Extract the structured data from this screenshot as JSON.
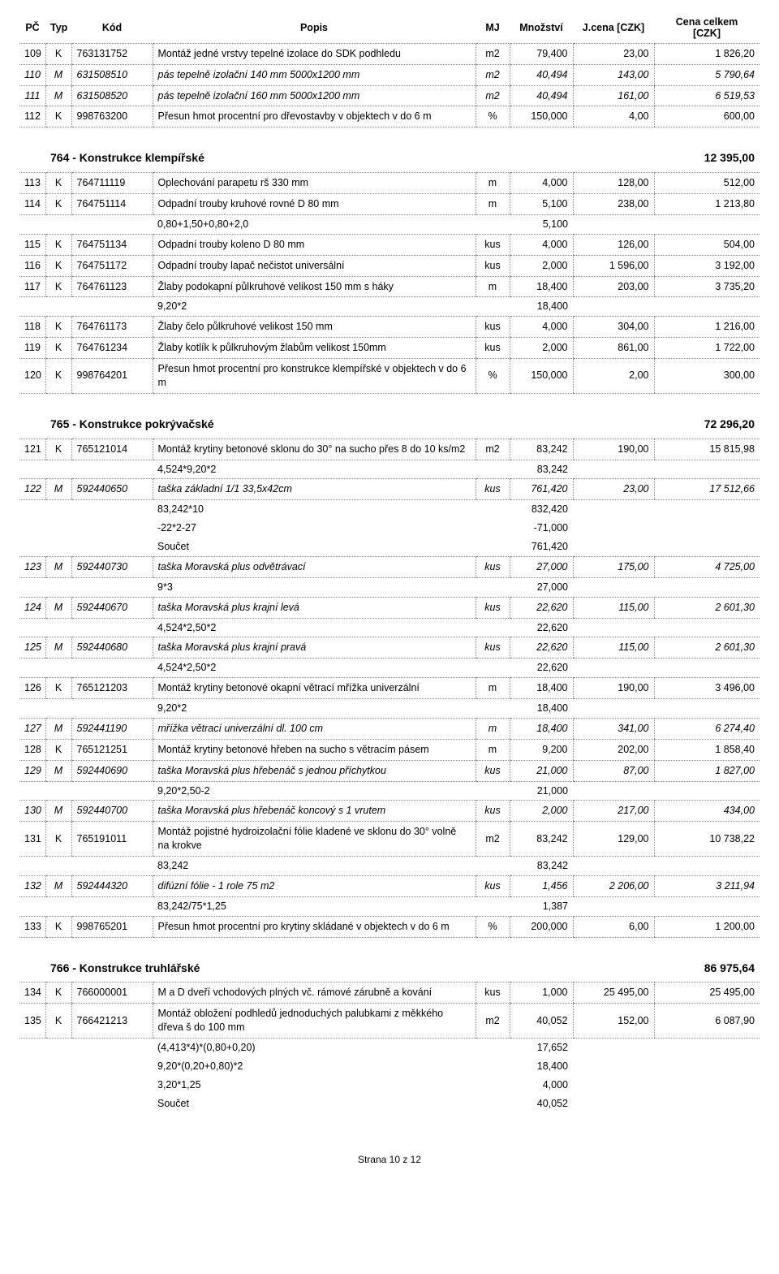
{
  "headers": {
    "pc": "PČ",
    "typ": "Typ",
    "kod": "Kód",
    "popis": "Popis",
    "mj": "MJ",
    "mnoz": "Množství",
    "jcena": "J.cena [CZK]",
    "cena": "Cena celkem\n[CZK]"
  },
  "footer": "Strana 10 z 12",
  "intro": [
    {
      "pc": "109",
      "typ": "K",
      "kod": "763131752",
      "popis": "Montáž jedné vrstvy tepelné izolace do SDK podhledu",
      "mj": "m2",
      "mnoz": "79,400",
      "jcena": "23,00",
      "cena": "1 826,20"
    },
    {
      "pc": "110",
      "typ": "M",
      "kod": "631508510",
      "popis": "pás tepelně izolační   140 mm 5000x1200 mm",
      "mj": "m2",
      "mnoz": "40,494",
      "jcena": "143,00",
      "cena": "5 790,64",
      "italic": true
    },
    {
      "pc": "111",
      "typ": "M",
      "kod": "631508520",
      "popis": "pás tepelně izolační 160 mm 5000x1200 mm",
      "mj": "m2",
      "mnoz": "40,494",
      "jcena": "161,00",
      "cena": "6 519,53",
      "italic": true
    },
    {
      "pc": "112",
      "typ": "K",
      "kod": "998763200",
      "popis": "Přesun hmot procentní pro dřevostavby v objektech v do 6 m",
      "mj": "%",
      "mnoz": "150,000",
      "jcena": "4,00",
      "cena": "600,00"
    }
  ],
  "sections": [
    {
      "title": "764 - Konstrukce klempířské",
      "total": "12 395,00",
      "rows": [
        {
          "t": "r",
          "pc": "113",
          "typ": "K",
          "kod": "764711119",
          "popis": "Oplechování parapetu  rš 330 mm",
          "mj": "m",
          "mnoz": "4,000",
          "jcena": "128,00",
          "cena": "512,00"
        },
        {
          "t": "r",
          "pc": "114",
          "typ": "K",
          "kod": "764751114",
          "popis": "Odpadní trouby kruhové rovné D 80 mm",
          "mj": "m",
          "mnoz": "5,100",
          "jcena": "238,00",
          "cena": "1 213,80"
        },
        {
          "t": "c",
          "expr": "0,80+1,50+0,80+2,0",
          "val": "5,100"
        },
        {
          "t": "r",
          "pc": "115",
          "typ": "K",
          "kod": "764751134",
          "popis": "Odpadní trouby  koleno  D 80 mm",
          "mj": "kus",
          "mnoz": "4,000",
          "jcena": "126,00",
          "cena": "504,00"
        },
        {
          "t": "r",
          "pc": "116",
          "typ": "K",
          "kod": "764751172",
          "popis": "Odpadní trouby  lapač nečistot  universální",
          "mj": "kus",
          "mnoz": "2,000",
          "jcena": "1 596,00",
          "cena": "3 192,00"
        },
        {
          "t": "r",
          "pc": "117",
          "typ": "K",
          "kod": "764761123",
          "popis": "Žlaby podokapní půlkruhové  velikost 150 mm s háky",
          "mj": "m",
          "mnoz": "18,400",
          "jcena": "203,00",
          "cena": "3 735,20"
        },
        {
          "t": "c",
          "expr": "9,20*2",
          "val": "18,400"
        },
        {
          "t": "r",
          "pc": "118",
          "typ": "K",
          "kod": "764761173",
          "popis": "Žlaby   čelo půlkruhové  velikost 150 mm",
          "mj": "kus",
          "mnoz": "4,000",
          "jcena": "304,00",
          "cena": "1 216,00"
        },
        {
          "t": "r",
          "pc": "119",
          "typ": "K",
          "kod": "764761234",
          "popis": "Žlaby   kotlík  k půlkruhovým žlabům velikost 150mm",
          "mj": "kus",
          "mnoz": "2,000",
          "jcena": "861,00",
          "cena": "1 722,00"
        },
        {
          "t": "r",
          "pc": "120",
          "typ": "K",
          "kod": "998764201",
          "popis": "Přesun hmot procentní pro konstrukce klempířské v objektech v do 6 m",
          "mj": "%",
          "mnoz": "150,000",
          "jcena": "2,00",
          "cena": "300,00"
        }
      ]
    },
    {
      "title": "765 - Konstrukce pokrývačské",
      "total": "72 296,20",
      "rows": [
        {
          "t": "r",
          "pc": "121",
          "typ": "K",
          "kod": "765121014",
          "popis": "Montáž krytiny betonové sklonu do 30° na sucho přes 8 do 10 ks/m2",
          "mj": "m2",
          "mnoz": "83,242",
          "jcena": "190,00",
          "cena": "15 815,98"
        },
        {
          "t": "c",
          "expr": "4,524*9,20*2",
          "val": "83,242"
        },
        {
          "t": "r",
          "pc": "122",
          "typ": "M",
          "kod": "592440650",
          "popis": "taška  základní 1/1 33,5x42cm",
          "mj": "kus",
          "mnoz": "761,420",
          "jcena": "23,00",
          "cena": "17 512,66",
          "italic": true
        },
        {
          "t": "c",
          "expr": "83,242*10",
          "val": "832,420"
        },
        {
          "t": "c",
          "expr": "-22*2-27",
          "val": "-71,000"
        },
        {
          "t": "c",
          "expr": "Součet",
          "val": "761,420"
        },
        {
          "t": "r",
          "pc": "123",
          "typ": "M",
          "kod": "592440730",
          "popis": "taška Moravská plus odvětrávací",
          "mj": "kus",
          "mnoz": "27,000",
          "jcena": "175,00",
          "cena": "4 725,00",
          "italic": true
        },
        {
          "t": "c",
          "expr": "9*3",
          "val": "27,000"
        },
        {
          "t": "r",
          "pc": "124",
          "typ": "M",
          "kod": "592440670",
          "popis": "taška Moravská plus krajní levá",
          "mj": "kus",
          "mnoz": "22,620",
          "jcena": "115,00",
          "cena": "2 601,30",
          "italic": true
        },
        {
          "t": "c",
          "expr": "4,524*2,50*2",
          "val": "22,620"
        },
        {
          "t": "r",
          "pc": "125",
          "typ": "M",
          "kod": "592440680",
          "popis": "taška Moravská plus krajní pravá",
          "mj": "kus",
          "mnoz": "22,620",
          "jcena": "115,00",
          "cena": "2 601,30",
          "italic": true
        },
        {
          "t": "c",
          "expr": "4,524*2,50*2",
          "val": "22,620"
        },
        {
          "t": "r",
          "pc": "126",
          "typ": "K",
          "kod": "765121203",
          "popis": "Montáž krytiny betonové okapní větrací mřížka univerzální",
          "mj": "m",
          "mnoz": "18,400",
          "jcena": "190,00",
          "cena": "3 496,00"
        },
        {
          "t": "c",
          "expr": "9,20*2",
          "val": "18,400"
        },
        {
          "t": "r",
          "pc": "127",
          "typ": "M",
          "kod": "592441190",
          "popis": "mřížka větrací univerzální dl. 100 cm",
          "mj": "m",
          "mnoz": "18,400",
          "jcena": "341,00",
          "cena": "6 274,40",
          "italic": true
        },
        {
          "t": "r",
          "pc": "128",
          "typ": "K",
          "kod": "765121251",
          "popis": "Montáž krytiny betonové hřeben na sucho s větracím pásem",
          "mj": "m",
          "mnoz": "9,200",
          "jcena": "202,00",
          "cena": "1 858,40"
        },
        {
          "t": "r",
          "pc": "129",
          "typ": "M",
          "kod": "592440690",
          "popis": "taška Moravská plus hřebenáč s jednou příchytkou",
          "mj": "kus",
          "mnoz": "21,000",
          "jcena": "87,00",
          "cena": "1 827,00",
          "italic": true
        },
        {
          "t": "c",
          "expr": "9,20*2,50-2",
          "val": "21,000"
        },
        {
          "t": "r",
          "pc": "130",
          "typ": "M",
          "kod": "592440700",
          "popis": "taška Moravská plus hřebenáč koncový s 1 vrutem",
          "mj": "kus",
          "mnoz": "2,000",
          "jcena": "217,00",
          "cena": "434,00",
          "italic": true
        },
        {
          "t": "r",
          "pc": "131",
          "typ": "K",
          "kod": "765191011",
          "popis": "Montáž pojistné hydroizolační fólie kladené ve sklonu do 30° volně na krokve",
          "mj": "m2",
          "mnoz": "83,242",
          "jcena": "129,00",
          "cena": "10 738,22"
        },
        {
          "t": "c",
          "expr": "83,242",
          "val": "83,242"
        },
        {
          "t": "r",
          "pc": "132",
          "typ": "M",
          "kod": "592444320",
          "popis": "difúzní fólie  - 1 role 75 m2",
          "mj": "kus",
          "mnoz": "1,456",
          "jcena": "2 206,00",
          "cena": "3 211,94",
          "italic": true
        },
        {
          "t": "c",
          "expr": "83,242/75*1,25",
          "val": "1,387"
        },
        {
          "t": "r",
          "pc": "133",
          "typ": "K",
          "kod": "998765201",
          "popis": "Přesun hmot procentní pro krytiny skládané v objektech v do 6 m",
          "mj": "%",
          "mnoz": "200,000",
          "jcena": "6,00",
          "cena": "1 200,00"
        }
      ]
    },
    {
      "title": "766 - Konstrukce truhlářské",
      "total": "86 975,64",
      "rows": [
        {
          "t": "r",
          "pc": "134",
          "typ": "K",
          "kod": "766000001",
          "popis": "M a D dveří vchodových plných vč. rámové zárubně a kování",
          "mj": "kus",
          "mnoz": "1,000",
          "jcena": "25 495,00",
          "cena": "25 495,00"
        },
        {
          "t": "r",
          "pc": "135",
          "typ": "K",
          "kod": "766421213",
          "popis": "Montáž obložení podhledů jednoduchých palubkami z měkkého dřeva š do 100 mm",
          "mj": "m2",
          "mnoz": "40,052",
          "jcena": "152,00",
          "cena": "6 087,90"
        },
        {
          "t": "c",
          "expr": "(4,413*4)*(0,80+0,20)",
          "val": "17,652"
        },
        {
          "t": "c",
          "expr": "9,20*(0,20+0,80)*2",
          "val": "18,400"
        },
        {
          "t": "c",
          "expr": "3,20*1,25",
          "val": "4,000"
        },
        {
          "t": "c",
          "expr": "Součet",
          "val": "40,052"
        }
      ]
    }
  ]
}
